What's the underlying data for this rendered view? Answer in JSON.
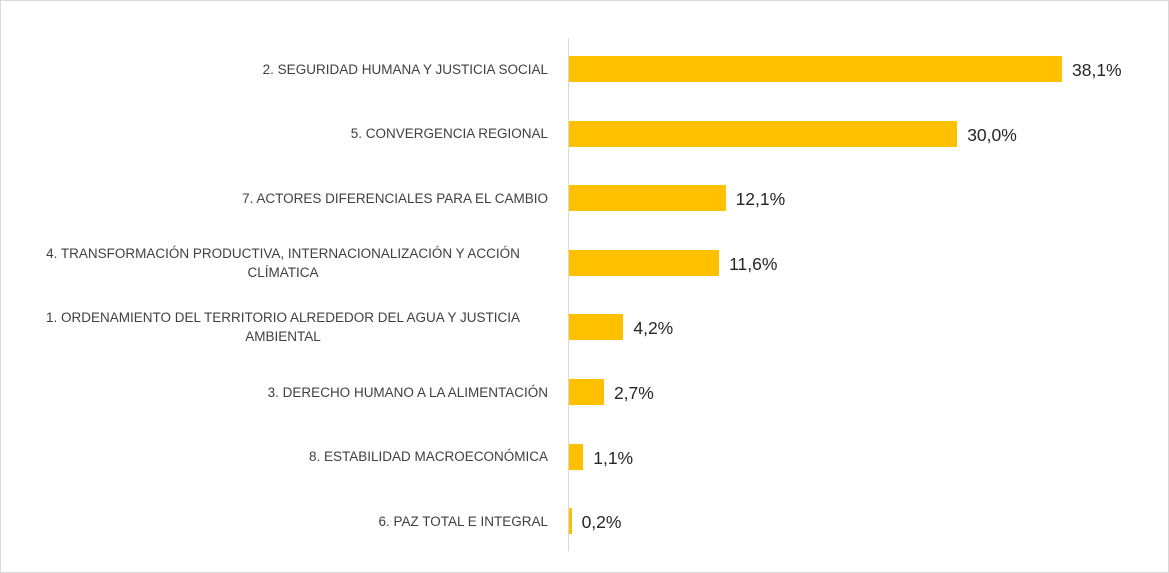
{
  "chart_data": {
    "type": "bar",
    "orientation": "horizontal",
    "color": "#ffc000",
    "categories": [
      "2. SEGURIDAD HUMANA Y JUSTICIA SOCIAL",
      "5. CONVERGENCIA REGIONAL",
      "7. ACTORES DIFERENCIALES PARA EL CAMBIO",
      "4. TRANSFORMACIÓN PRODUCTIVA, INTERNACIONALIZACIÓN Y ACCIÓN CLÍMATICA",
      "1. ORDENAMIENTO DEL TERRITORIO ALREDEDOR DEL AGUA Y JUSTICIA AMBIENTAL",
      "3. DERECHO HUMANO A LA ALIMENTACIÓN",
      "8. ESTABILIDAD MACROECONÓMICA",
      "6. PAZ TOTAL E INTEGRAL"
    ],
    "values": [
      38.1,
      30.0,
      12.1,
      11.6,
      4.2,
      2.7,
      1.1,
      0.2
    ],
    "value_labels": [
      "38,1%",
      "30,0%",
      "12,1%",
      "11,6%",
      "4,2%",
      "2,7%",
      "1,1%",
      "0,2%"
    ]
  }
}
